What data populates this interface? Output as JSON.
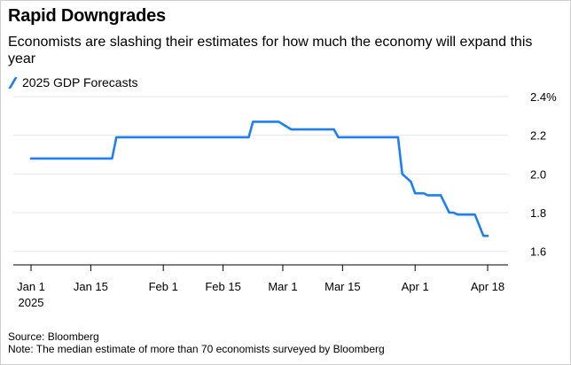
{
  "title": "Rapid Downgrades",
  "subtitle": "Economists are slashing their estimates for how much the economy will expand this year",
  "legend_label": "2025 GDP Forecasts",
  "footer": {
    "source": "Source: Bloomberg",
    "note": "Note: The median estimate of more than 70 economists surveyed by Bloomberg"
  },
  "colors": {
    "series": "#1f7ff0",
    "grid": "#e6e6e6",
    "axis": "#000000"
  },
  "chart_data": {
    "type": "line",
    "series": [
      {
        "name": "2025 GDP Forecasts",
        "points": [
          [
            "2025-01-01",
            2.08
          ],
          [
            "2025-01-20",
            2.08
          ],
          [
            "2025-01-21",
            2.19
          ],
          [
            "2025-02-21",
            2.19
          ],
          [
            "2025-02-22",
            2.27
          ],
          [
            "2025-02-28",
            2.27
          ],
          [
            "2025-03-03",
            2.23
          ],
          [
            "2025-03-13",
            2.23
          ],
          [
            "2025-03-14",
            2.19
          ],
          [
            "2025-03-28",
            2.19
          ],
          [
            "2025-03-29",
            2.0
          ],
          [
            "2025-03-31",
            1.96
          ],
          [
            "2025-04-01",
            1.9
          ],
          [
            "2025-04-03",
            1.9
          ],
          [
            "2025-04-04",
            1.89
          ],
          [
            "2025-04-07",
            1.89
          ],
          [
            "2025-04-09",
            1.8
          ],
          [
            "2025-04-10",
            1.8
          ],
          [
            "2025-04-11",
            1.79
          ],
          [
            "2025-04-15",
            1.79
          ],
          [
            "2025-04-17",
            1.68
          ],
          [
            "2025-04-18",
            1.68
          ]
        ]
      }
    ],
    "x_ticks": [
      {
        "date": "2025-01-01",
        "label": "Jan 1",
        "sublabel": "2025"
      },
      {
        "date": "2025-01-15",
        "label": "Jan 15"
      },
      {
        "date": "2025-02-01",
        "label": "Feb 1"
      },
      {
        "date": "2025-02-15",
        "label": "Feb 15"
      },
      {
        "date": "2025-03-01",
        "label": "Mar 1"
      },
      {
        "date": "2025-03-15",
        "label": "Mar 15"
      },
      {
        "date": "2025-04-01",
        "label": "Apr 1"
      },
      {
        "date": "2025-04-18",
        "label": "Apr 18"
      }
    ],
    "y_ticks": [
      {
        "value": 2.4,
        "label": "2.4%"
      },
      {
        "value": 2.2,
        "label": "2.2"
      },
      {
        "value": 2.0,
        "label": "2.0"
      },
      {
        "value": 1.8,
        "label": "1.8"
      },
      {
        "value": 1.6,
        "label": "1.6"
      }
    ],
    "ylim": [
      1.53,
      2.4
    ],
    "xlim": [
      "2025-01-01",
      "2025-04-18"
    ],
    "grid": true,
    "y_axis_side": "right"
  }
}
